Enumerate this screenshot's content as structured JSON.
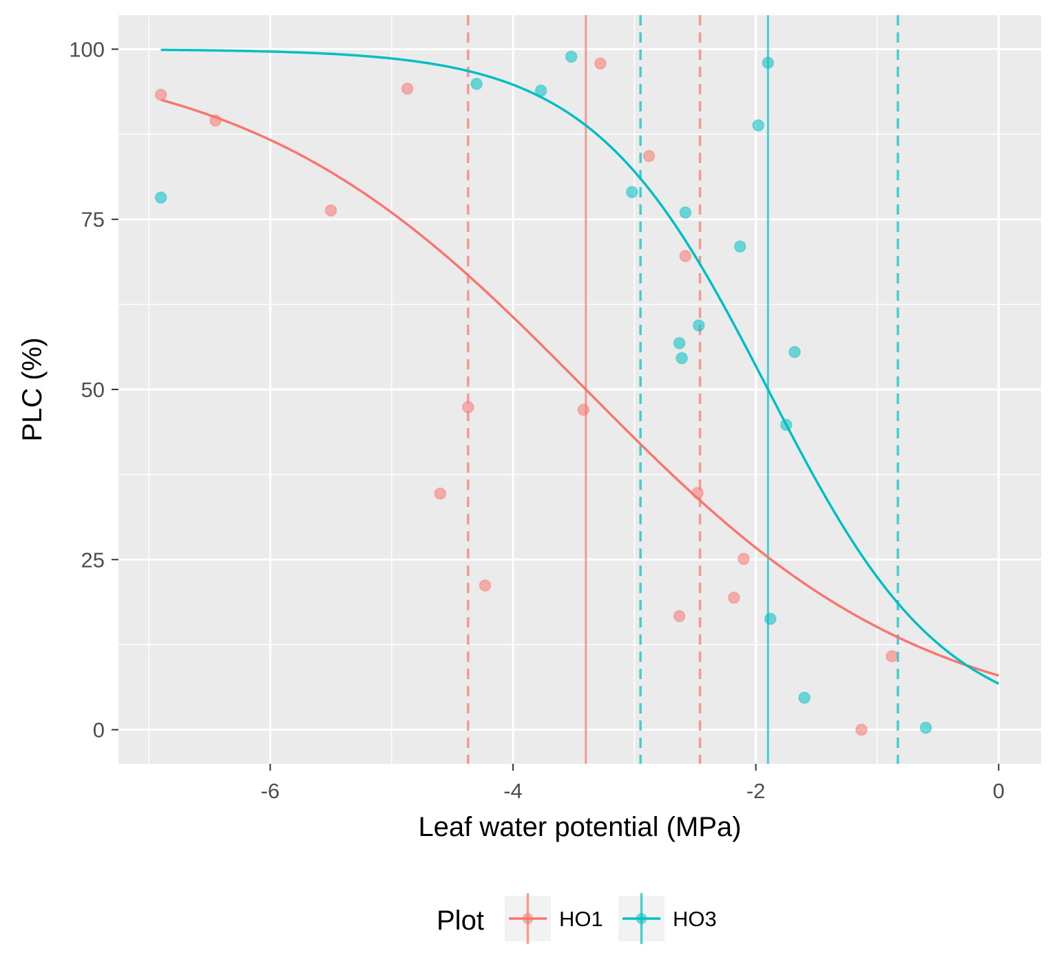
{
  "chart_data": {
    "type": "scatter",
    "xlabel": "Leaf water potential (MPa)",
    "ylabel": "PLC (%)",
    "xlim": [
      -7.25,
      0.35
    ],
    "ylim": [
      -5,
      105
    ],
    "x_ticks": [
      -6,
      -4,
      -2,
      0
    ],
    "y_ticks": [
      0,
      25,
      50,
      75,
      100
    ],
    "grid": true,
    "legend": {
      "title": "Plot",
      "placement": "bottom"
    },
    "series": [
      {
        "name": "HO1",
        "color": "#F8766D",
        "points": [
          {
            "x": -6.9,
            "y": 93.3
          },
          {
            "x": -6.45,
            "y": 89.5
          },
          {
            "x": -5.5,
            "y": 76.3
          },
          {
            "x": -4.87,
            "y": 94.2
          },
          {
            "x": -4.6,
            "y": 34.7
          },
          {
            "x": -4.37,
            "y": 47.4
          },
          {
            "x": -4.23,
            "y": 21.2
          },
          {
            "x": -3.42,
            "y": 47.0
          },
          {
            "x": -3.28,
            "y": 97.9
          },
          {
            "x": -2.88,
            "y": 84.3
          },
          {
            "x": -2.63,
            "y": 16.7
          },
          {
            "x": -2.58,
            "y": 69.6
          },
          {
            "x": -2.48,
            "y": 34.8
          },
          {
            "x": -2.18,
            "y": 19.4
          },
          {
            "x": -2.1,
            "y": 25.1
          },
          {
            "x": -1.13,
            "y": 0.0
          },
          {
            "x": -0.88,
            "y": 10.8
          }
        ],
        "fit": {
          "model": "sigmoid",
          "p50": -3.4,
          "slope": 0.72,
          "x_range": [
            -6.9,
            0
          ]
        },
        "p50": -3.4,
        "ci": [
          -4.37,
          -2.46
        ]
      },
      {
        "name": "HO3",
        "color": "#00BFC4",
        "points": [
          {
            "x": -6.9,
            "y": 78.2
          },
          {
            "x": -4.3,
            "y": 94.9
          },
          {
            "x": -3.77,
            "y": 93.9
          },
          {
            "x": -3.52,
            "y": 98.9
          },
          {
            "x": -3.02,
            "y": 79.0
          },
          {
            "x": -2.63,
            "y": 56.8
          },
          {
            "x": -2.61,
            "y": 54.6
          },
          {
            "x": -2.58,
            "y": 76.0
          },
          {
            "x": -2.47,
            "y": 59.4
          },
          {
            "x": -2.13,
            "y": 71.0
          },
          {
            "x": -1.98,
            "y": 88.8
          },
          {
            "x": -1.9,
            "y": 98.0
          },
          {
            "x": -1.88,
            "y": 16.3
          },
          {
            "x": -1.68,
            "y": 55.5
          },
          {
            "x": -1.75,
            "y": 44.8
          },
          {
            "x": -1.6,
            "y": 4.7
          },
          {
            "x": -0.6,
            "y": 0.3
          }
        ],
        "fit": {
          "model": "sigmoid",
          "p50": -1.9,
          "slope": 1.38,
          "x_range": [
            -6.9,
            0
          ]
        },
        "p50": -1.9,
        "ci": [
          -2.95,
          -0.83
        ]
      }
    ]
  }
}
